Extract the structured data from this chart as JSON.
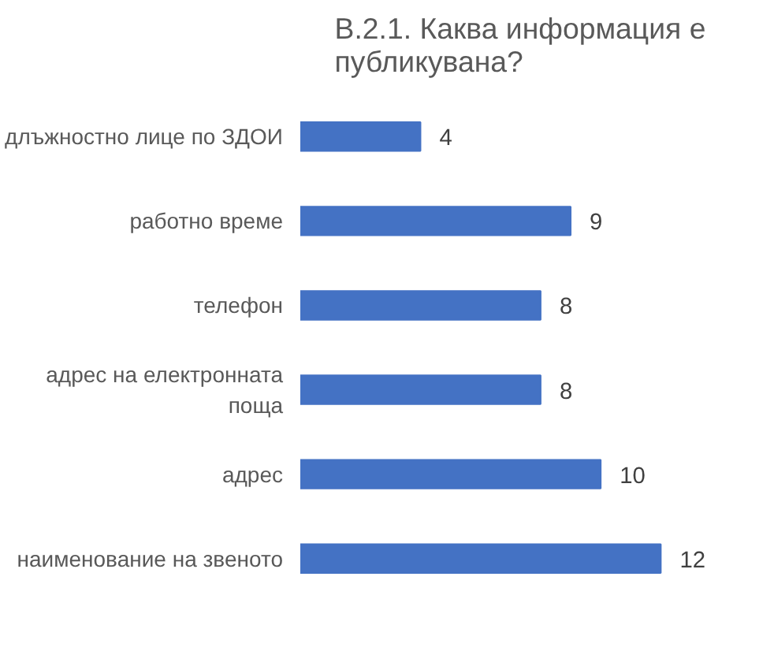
{
  "chart_data": {
    "type": "bar",
    "orientation": "horizontal",
    "title": "В.2.1. Каква информация е публикувана?",
    "categories": [
      "длъжностно лице по ЗДОИ",
      "работно време",
      "телефон",
      "адрес на електронната поща",
      "адрес",
      "наименование на звеното"
    ],
    "values": [
      4,
      9,
      8,
      8,
      10,
      12
    ],
    "color": "#4472c4",
    "data_labels": true,
    "grid": false
  }
}
